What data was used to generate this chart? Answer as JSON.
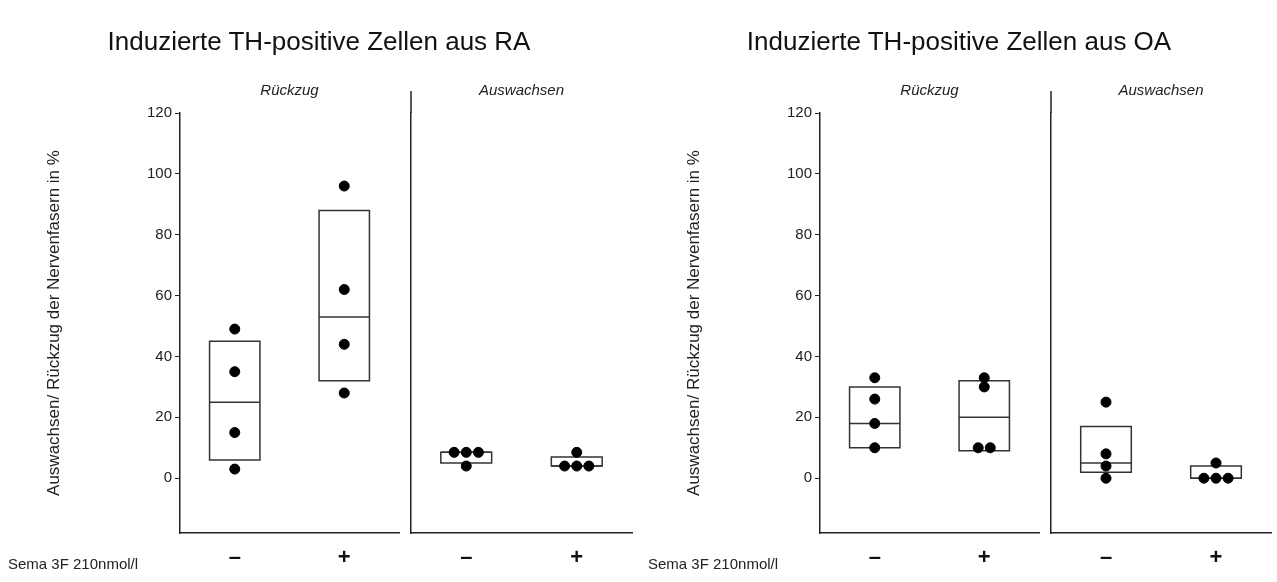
{
  "chart_data": [
    {
      "type": "box",
      "title": "Induzierte TH-positive Zellen aus RA",
      "subtitle": "Rückzug",
      "ylabel": "Auswachsen/ Rückzug der Nervenfasern in %",
      "xlabel": "Sema 3F 210nmol/l",
      "categories": [
        "–",
        "+"
      ],
      "boxes": [
        {
          "q1": 6,
          "median": 25,
          "q3": 45
        },
        {
          "q1": 32,
          "median": 53,
          "q3": 88
        }
      ],
      "series": [
        {
          "type": "scatter",
          "color": "#000000",
          "x": [
            "–",
            "–",
            "–",
            "–",
            "+",
            "+",
            "+",
            "+"
          ],
          "values": [
            49,
            35,
            15,
            3,
            96,
            62,
            44,
            28
          ]
        }
      ],
      "ylim": [
        -18,
        120
      ],
      "yticks": [
        0,
        20,
        40,
        60,
        80,
        100,
        120
      ],
      "grid": false,
      "legend": false,
      "marker": "circle"
    },
    {
      "type": "box",
      "subtitle": "Auswachsen",
      "categories": [
        "–",
        "+"
      ],
      "boxes": [
        {
          "q1": 5,
          "median": 8.5,
          "q3": 8.5
        },
        {
          "q1": 4,
          "median": 4,
          "q3": 7
        }
      ],
      "series": [
        {
          "type": "scatter",
          "color": "#000000",
          "x": [
            "–",
            "–",
            "–",
            "–",
            "+",
            "+",
            "+",
            "+"
          ],
          "values": [
            8.5,
            8.5,
            8.5,
            4,
            8.5,
            4,
            4,
            4
          ]
        }
      ],
      "ylim": [
        -18,
        120
      ],
      "yticks": [
        0,
        20,
        40,
        60,
        80,
        100,
        120
      ],
      "tick_labels": "x",
      "grid": false,
      "legend": false,
      "marker": "circle"
    },
    {
      "type": "box",
      "title": "Induzierte TH-positive Zellen aus OA",
      "subtitle": "Rückzug",
      "ylabel": "Auswachsen/ Rückzug der Nervenfasern in %",
      "xlabel": "Sema 3F 210nmol/l",
      "categories": [
        "–",
        "+"
      ],
      "boxes": [
        {
          "q1": 10,
          "median": 18,
          "q3": 30
        },
        {
          "q1": 9,
          "median": 20,
          "q3": 32
        }
      ],
      "series": [
        {
          "type": "scatter",
          "color": "#000000",
          "x": [
            "–",
            "–",
            "–",
            "–",
            "+",
            "+",
            "+",
            "+"
          ],
          "values": [
            33,
            26,
            18,
            10,
            33,
            30,
            10,
            10
          ]
        }
      ],
      "ylim": [
        -18,
        120
      ],
      "yticks": [
        0,
        20,
        40,
        60,
        80,
        100,
        120
      ],
      "grid": false,
      "legend": false,
      "marker": "circle"
    },
    {
      "type": "box",
      "subtitle": "Auswachsen",
      "categories": [
        "–",
        "+"
      ],
      "boxes": [
        {
          "q1": 2,
          "median": 5,
          "q3": 17
        },
        {
          "q1": 0,
          "median": 0,
          "q3": 4
        }
      ],
      "series": [
        {
          "type": "scatter",
          "color": "#000000",
          "x": [
            "–",
            "–",
            "–",
            "–",
            "+",
            "+",
            "+",
            "+"
          ],
          "values": [
            25,
            8,
            4,
            0,
            5,
            0,
            0,
            0
          ]
        }
      ],
      "ylim": [
        -18,
        120
      ],
      "yticks": [
        0,
        20,
        40,
        60,
        80,
        100,
        120
      ],
      "tick_labels": "x",
      "grid": false,
      "legend": false,
      "marker": "circle"
    }
  ]
}
